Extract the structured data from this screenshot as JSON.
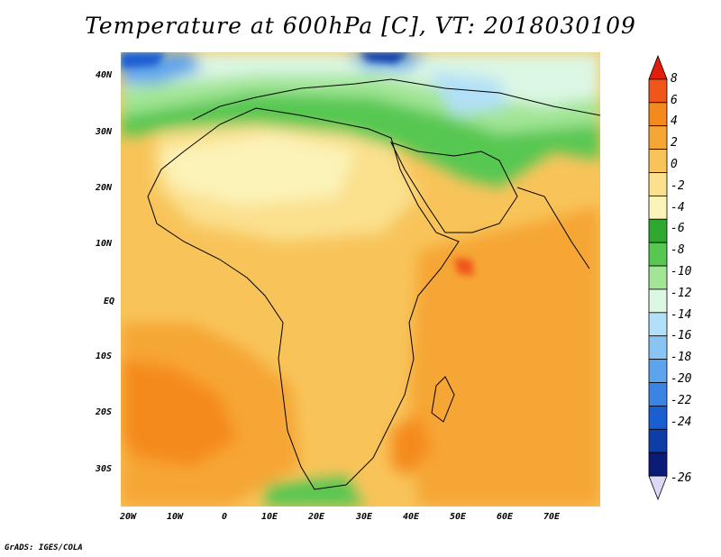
{
  "title": "Temperature at 600hPa [C], VT: 2018030109",
  "credit": "GrADS: IGES/COLA",
  "lat_labels": [
    "40N",
    "30N",
    "20N",
    "10N",
    "EQ",
    "10S",
    "20S",
    "30S"
  ],
  "lon_labels": [
    "20W",
    "10W",
    "0",
    "10E",
    "20E",
    "30E",
    "40E",
    "50E",
    "60E",
    "70E"
  ],
  "colorbar": {
    "levels": [
      "8",
      "6",
      "4",
      "2",
      "0",
      "-2",
      "-4",
      "-6",
      "-8",
      "-10",
      "-12",
      "-14",
      "-16",
      "-18",
      "-20",
      "-22",
      "-24",
      "-26"
    ],
    "colors": [
      "#e01e0a",
      "#f0551a",
      "#f58a1c",
      "#f6a635",
      "#f8c45a",
      "#fbe08e",
      "#fcf3b8",
      "#2fa82f",
      "#56c751",
      "#a2e596",
      "#dcf7e4",
      "#b2e0f8",
      "#8ac4f3",
      "#5ea4ec",
      "#3b84e3",
      "#1a5ed2",
      "#0d3ea8",
      "#0c1a78",
      "#dcd8f8"
    ]
  }
}
